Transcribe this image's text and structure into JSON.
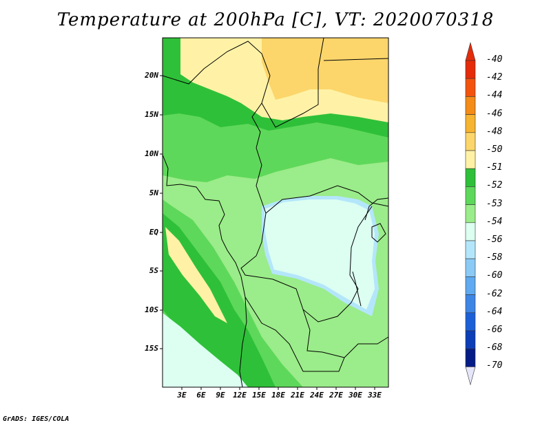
{
  "title": "Temperature at 200hPa [C], VT: 2020070318",
  "credit": "GrADS: IGES/COLA",
  "lat_labels": [
    "20N",
    "15N",
    "10N",
    "5N",
    "EQ",
    "5S",
    "10S",
    "15S"
  ],
  "lon_labels": [
    "3E",
    "6E",
    "9E",
    "12E",
    "15E",
    "18E",
    "21E",
    "24E",
    "27E",
    "30E",
    "33E"
  ],
  "legend": {
    "labels": [
      "-40",
      "-42",
      "-44",
      "-46",
      "-48",
      "-50",
      "-51",
      "-52",
      "-53",
      "-54",
      "-56",
      "-58",
      "-60",
      "-62",
      "-64",
      "-66",
      "-68",
      "-70"
    ],
    "colors": [
      "#e52b0a",
      "#f4530e",
      "#f58c18",
      "#f7b430",
      "#fcd66b",
      "#fff2a6",
      "#2fc039",
      "#5ed85a",
      "#9bec8a",
      "#dcfff2",
      "#b4e6fb",
      "#8ccaf6",
      "#5faaf0",
      "#3d86e6",
      "#1c60d8",
      "#0c3eb8",
      "#051c86",
      "#e6e6fa"
    ],
    "top_color": "#e52b0a",
    "bottom_color": "#e6e6fa"
  },
  "fill_colors": {
    "c50": "#fff2a6",
    "c48": "#fcd66b",
    "c51": "#2fc039",
    "c52": "#5ed85a",
    "c53": "#9bec8a",
    "c54": "#b4e6fb",
    "c55": "#dcfff2"
  }
}
